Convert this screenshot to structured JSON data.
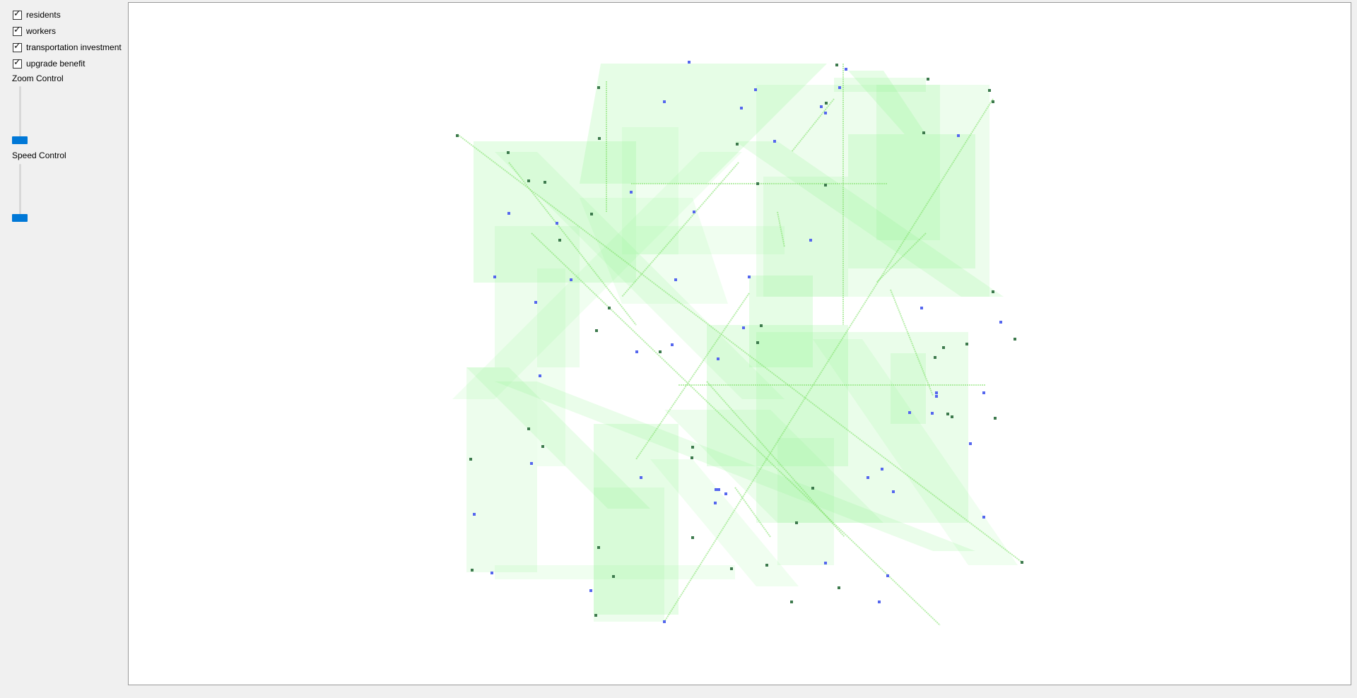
{
  "controls": {
    "checkboxes": [
      {
        "label": "residents",
        "checked": true
      },
      {
        "label": "workers",
        "checked": true
      },
      {
        "label": "transportation investment",
        "checked": true
      },
      {
        "label": "upgrade benefit",
        "checked": true
      }
    ],
    "zoom_label": "Zoom Control",
    "speed_label": "Speed Control",
    "zoom_level": 0.0,
    "speed_level": 0.0,
    "check_glyph": "✓"
  },
  "map": {
    "colors": {
      "worker_dot": "#3d7a4d",
      "resident_dot": "#5566ee",
      "route_fill": "#8ef58e",
      "route_line": "#7ee066"
    }
  }
}
